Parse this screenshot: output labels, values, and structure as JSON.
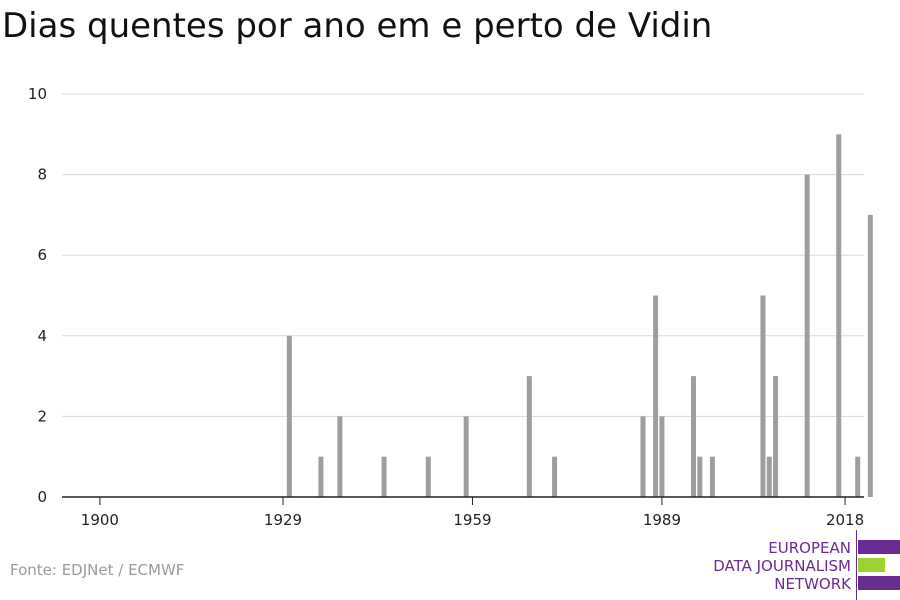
{
  "chart_data": {
    "type": "bar",
    "title": "Dias quentes por ano em e perto de Vidin",
    "xlabel": "",
    "ylabel": "",
    "xlim": [
      1894,
      2021
    ],
    "ylim": [
      0,
      10
    ],
    "yticks": [
      0,
      2,
      4,
      6,
      8,
      10
    ],
    "xticks": [
      1900,
      1929,
      1959,
      1989,
      2018
    ],
    "grid": true,
    "legend": "none",
    "bar_color": "#9e9e9e",
    "x": [
      1930,
      1935,
      1938,
      1945,
      1952,
      1958,
      1968,
      1972,
      1986,
      1988,
      1989,
      1994,
      1995,
      1997,
      2005,
      2006,
      2007,
      2012,
      2017,
      2020,
      2022
    ],
    "values": [
      4,
      1,
      2,
      1,
      1,
      2,
      3,
      1,
      2,
      5,
      2,
      3,
      1,
      1,
      5,
      1,
      3,
      8,
      9,
      1,
      7
    ]
  },
  "source": "Fonte: EDJNet / ECMWF",
  "logo": {
    "line1": "EUROPEAN",
    "line2": "DATA JOURNALISM",
    "line3": "NETWORK",
    "purple": "#6b2c91",
    "green": "#9ad32f"
  }
}
